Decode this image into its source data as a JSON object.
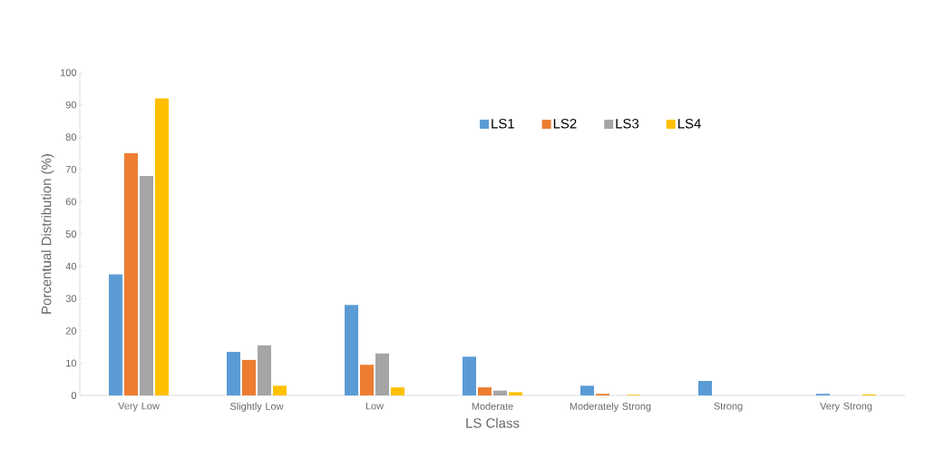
{
  "chart_data": {
    "type": "bar",
    "xlabel": "LS Class",
    "ylabel": "Porcentual Distribution (%)",
    "categories": [
      "Very Low",
      "Slightly Low",
      "Low",
      "Moderate",
      "Moderately Strong",
      "Strong",
      "Very Strong"
    ],
    "series": [
      {
        "name": "LS1",
        "color": "#5b9bd5",
        "values": [
          37.5,
          13.5,
          28,
          12,
          3,
          4.5,
          0.5
        ]
      },
      {
        "name": "LS2",
        "color": "#ed7d31",
        "values": [
          75,
          11,
          9.5,
          2.5,
          0.5,
          null,
          0
        ]
      },
      {
        "name": "LS3",
        "color": "#a5a5a5",
        "values": [
          68,
          15.5,
          13,
          1.5,
          null,
          null,
          0
        ]
      },
      {
        "name": "LS4",
        "color": "#ffc000",
        "values": [
          92,
          3,
          2.5,
          1,
          0.2,
          null,
          0.3
        ]
      }
    ],
    "ylim": [
      0,
      100
    ],
    "yticks": [
      0,
      10,
      20,
      30,
      40,
      50,
      60,
      70,
      80,
      90,
      100
    ],
    "grid": false,
    "legend": "top"
  }
}
